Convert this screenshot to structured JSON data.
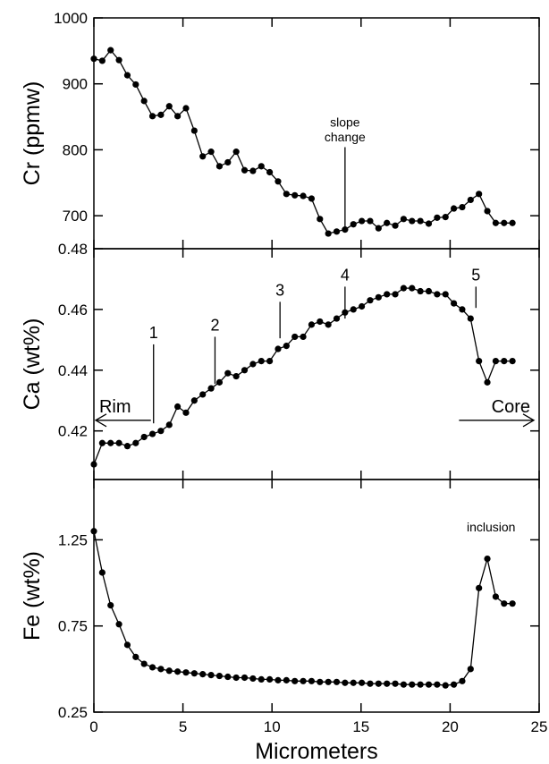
{
  "chart_data": {
    "type": "line",
    "xlabel": "Micrometers",
    "xlim": [
      0,
      25
    ],
    "xticks": [
      0,
      5,
      10,
      15,
      20,
      25
    ],
    "grid": false,
    "panels": [
      {
        "id": "cr",
        "ylabel": "Cr (ppmw)",
        "ylim": [
          650,
          1000
        ],
        "yticks": [
          700,
          800,
          900,
          1000
        ],
        "ytick_labels": [
          "700",
          "800",
          "900",
          "1000"
        ],
        "series": [
          {
            "x": [
              0,
              0.47,
              0.94,
              1.41,
              1.88,
              2.35,
              2.82,
              3.29,
              3.76,
              4.23,
              4.7,
              5.17,
              5.64,
              6.11,
              6.58,
              7.05,
              7.52,
              7.99,
              8.46,
              8.93,
              9.4,
              9.87,
              10.34,
              10.81,
              11.28,
              11.75,
              12.22,
              12.69,
              13.16,
              13.63,
              14.1,
              14.57,
              15.04,
              15.51,
              15.98,
              16.45,
              16.92,
              17.39,
              17.86,
              18.33,
              18.8,
              19.27,
              19.74,
              20.21,
              20.68,
              21.15,
              21.62,
              22.09,
              22.56,
              23.03,
              23.5
            ],
            "y": [
              938,
              935,
              951,
              936,
              913,
              899,
              874,
              851,
              853,
              866,
              851,
              863,
              829,
              790,
              797,
              775,
              781,
              797,
              769,
              768,
              775,
              766,
              752,
              733,
              731,
              730,
              726,
              695,
              673,
              676,
              679,
              687,
              692,
              692,
              681,
              689,
              685,
              695,
              692,
              692,
              688,
              697,
              698,
              711,
              713,
              724,
              733,
              707,
              689,
              689,
              689
            ]
          }
        ],
        "annotations": [
          {
            "text": "slope",
            "x": 14.1,
            "y": 835
          },
          {
            "text": "change",
            "x": 14.1,
            "y": 813
          }
        ],
        "vlines": [
          {
            "x": 14.1,
            "y0": 676,
            "y1": 804
          }
        ]
      },
      {
        "id": "ca",
        "ylabel": "Ca (wt%)",
        "ylim": [
          0.404,
          0.48
        ],
        "yticks": [
          0.42,
          0.44,
          0.46,
          0.48
        ],
        "ytick_labels": [
          "0.42",
          "0.44",
          "0.46",
          "0.48"
        ],
        "series": [
          {
            "x": [
              0,
              0.47,
              0.94,
              1.41,
              1.88,
              2.35,
              2.82,
              3.29,
              3.76,
              4.23,
              4.7,
              5.17,
              5.64,
              6.11,
              6.58,
              7.05,
              7.52,
              7.99,
              8.46,
              8.93,
              9.4,
              9.87,
              10.34,
              10.81,
              11.28,
              11.75,
              12.22,
              12.69,
              13.16,
              13.63,
              14.1,
              14.57,
              15.04,
              15.51,
              15.98,
              16.45,
              16.92,
              17.39,
              17.86,
              18.33,
              18.8,
              19.27,
              19.74,
              20.21,
              20.68,
              21.15,
              21.62,
              22.09,
              22.56,
              23.03,
              23.5
            ],
            "y": [
              0.409,
              0.416,
              0.416,
              0.416,
              0.415,
              0.416,
              0.418,
              0.419,
              0.42,
              0.422,
              0.428,
              0.426,
              0.43,
              0.432,
              0.434,
              0.436,
              0.439,
              0.438,
              0.44,
              0.442,
              0.443,
              0.443,
              0.447,
              0.448,
              0.451,
              0.451,
              0.455,
              0.456,
              0.455,
              0.457,
              0.459,
              0.46,
              0.461,
              0.463,
              0.464,
              0.465,
              0.465,
              0.467,
              0.467,
              0.466,
              0.466,
              0.465,
              0.465,
              0.462,
              0.46,
              0.457,
              0.443,
              0.436,
              0.443,
              0.443,
              0.443
            ]
          }
        ],
        "markers": [
          {
            "label": "1",
            "x": 3.35,
            "y0": 0.4225,
            "y1": 0.4485
          },
          {
            "label": "2",
            "x": 6.8,
            "y0": 0.4355,
            "y1": 0.451
          },
          {
            "label": "3",
            "x": 10.45,
            "y0": 0.4505,
            "y1": 0.4625
          },
          {
            "label": "4",
            "x": 14.1,
            "y0": 0.457,
            "y1": 0.4675
          },
          {
            "label": "5",
            "x": 21.45,
            "y0": 0.4605,
            "y1": 0.4675
          }
        ],
        "arrows": [
          {
            "label": "Rim",
            "direction": "left",
            "x0": 0.1,
            "x1": 3.2,
            "y": 0.4235
          },
          {
            "label": "Core",
            "direction": "right",
            "x0": 20.5,
            "x1": 24.7,
            "y": 0.4235
          }
        ]
      },
      {
        "id": "fe",
        "ylabel": "Fe (wt%)",
        "ylim": [
          0.25,
          1.6
        ],
        "yticks": [
          0.25,
          0.75,
          1.25
        ],
        "ytick_labels": [
          "0.25",
          "0.75",
          "1.25"
        ],
        "series": [
          {
            "x": [
              0,
              0.47,
              0.94,
              1.41,
              1.88,
              2.35,
              2.82,
              3.29,
              3.76,
              4.23,
              4.7,
              5.17,
              5.64,
              6.11,
              6.58,
              7.05,
              7.52,
              7.99,
              8.46,
              8.93,
              9.4,
              9.87,
              10.34,
              10.81,
              11.28,
              11.75,
              12.22,
              12.69,
              13.16,
              13.63,
              14.1,
              14.57,
              15.04,
              15.51,
              15.98,
              16.45,
              16.92,
              17.39,
              17.86,
              18.33,
              18.8,
              19.27,
              19.74,
              20.21,
              20.68,
              21.15,
              21.62,
              22.09,
              22.56,
              23.03,
              23.5
            ],
            "y": [
              1.3,
              1.06,
              0.87,
              0.76,
              0.64,
              0.57,
              0.53,
              0.51,
              0.5,
              0.49,
              0.485,
              0.48,
              0.475,
              0.47,
              0.465,
              0.46,
              0.455,
              0.45,
              0.45,
              0.445,
              0.44,
              0.44,
              0.435,
              0.435,
              0.43,
              0.43,
              0.43,
              0.425,
              0.425,
              0.425,
              0.42,
              0.42,
              0.42,
              0.415,
              0.415,
              0.415,
              0.415,
              0.41,
              0.41,
              0.41,
              0.41,
              0.41,
              0.405,
              0.41,
              0.43,
              0.5,
              0.97,
              1.14,
              0.92,
              0.88,
              0.88
            ]
          }
        ],
        "annotations": [
          {
            "text": "inclusion",
            "x": 22.3,
            "y": 1.3
          }
        ]
      }
    ]
  }
}
